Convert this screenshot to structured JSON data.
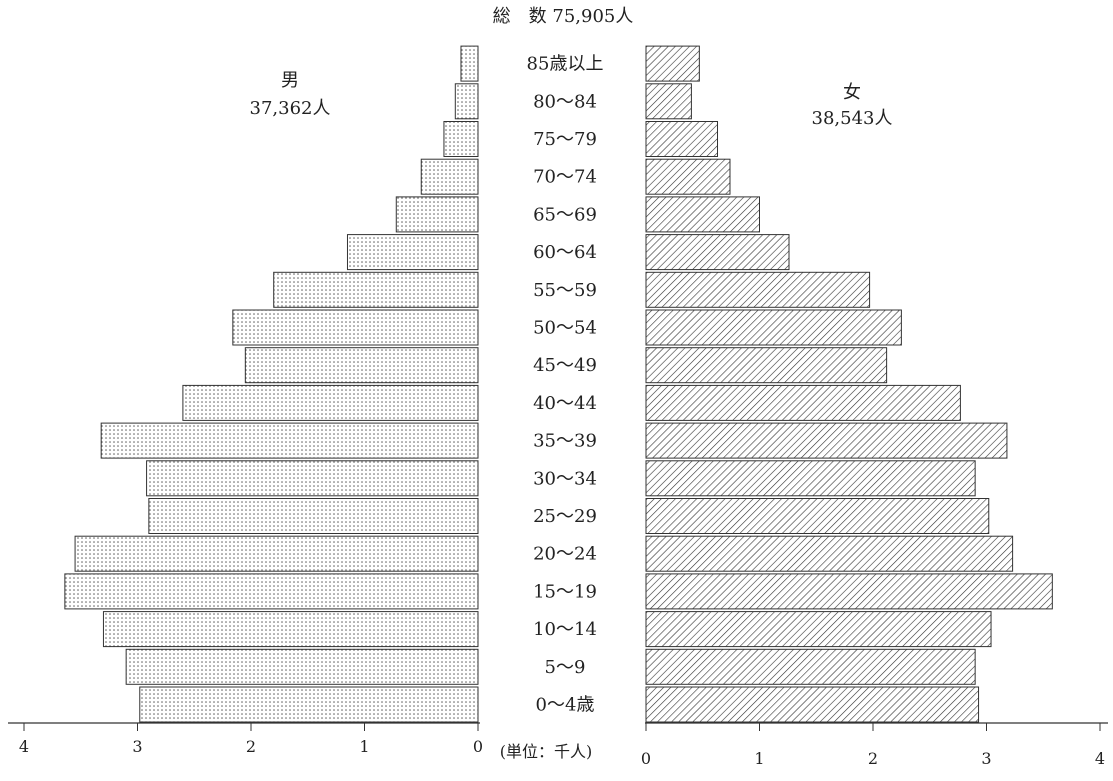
{
  "total_label": "総　数 75,905人",
  "male": {
    "name": "男",
    "total": "37,362人"
  },
  "female": {
    "name": "女",
    "total": "38,543人"
  },
  "unit_label": "(単位：千人)",
  "colors": {
    "bar_stroke": "#333333",
    "male_dots": "#555555",
    "female_hatch": "#333333",
    "axis": "#333333"
  },
  "chart_data": {
    "type": "bar",
    "orientation": "horizontal",
    "subtype": "population-pyramid",
    "categories": [
      "0〜4歳",
      "5〜9",
      "10〜14",
      "15〜19",
      "20〜24",
      "25〜29",
      "30〜34",
      "35〜39",
      "40〜44",
      "45〜49",
      "50〜54",
      "55〜59",
      "60〜64",
      "65〜69",
      "70〜74",
      "75〜79",
      "80〜84",
      "85歳以上"
    ],
    "series": [
      {
        "name": "男",
        "values": [
          2.98,
          3.1,
          3.3,
          3.64,
          3.55,
          2.9,
          2.92,
          3.32,
          2.6,
          2.05,
          2.16,
          1.8,
          1.15,
          0.72,
          0.5,
          0.3,
          0.2,
          0.15
        ]
      },
      {
        "name": "女",
        "values": [
          2.93,
          2.9,
          3.04,
          3.58,
          3.23,
          3.02,
          2.9,
          3.18,
          2.77,
          2.12,
          2.25,
          1.97,
          1.26,
          1.0,
          0.74,
          0.63,
          0.4,
          0.47
        ]
      }
    ],
    "xlim": [
      0,
      4
    ],
    "ticks": [
      "0",
      "1",
      "2",
      "3",
      "4"
    ],
    "xlabel": "(単位：千人)",
    "title": "総　数 75,905人",
    "grid": false,
    "legend": "none"
  }
}
